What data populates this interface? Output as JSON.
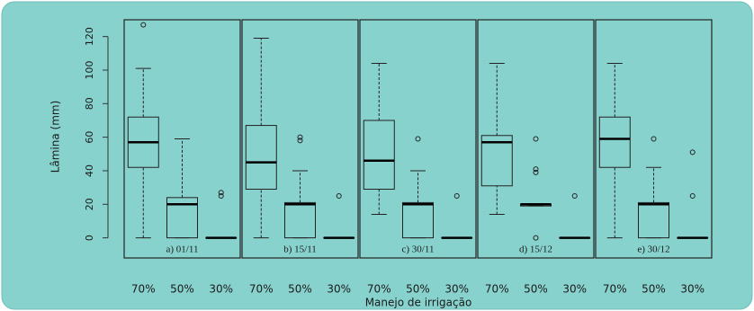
{
  "chart_data": {
    "type": "box",
    "ylabel": "Lâmina (mm)",
    "xlabel": "Manejo de irrigação",
    "categories": [
      "70%",
      "50%",
      "30%"
    ],
    "ylim": [
      -12,
      130
    ],
    "yticks": [
      0,
      20,
      40,
      60,
      80,
      100,
      120
    ],
    "panels": [
      {
        "label": "a) 01/11",
        "boxes": [
          {
            "min": 0,
            "q1": 42,
            "median": 57,
            "q3": 72,
            "max": 101,
            "outliers": [
              127
            ]
          },
          {
            "min": 0,
            "q1": 0,
            "median": 20,
            "q3": 24,
            "max": 59,
            "outliers": []
          },
          {
            "min": 0,
            "q1": 0,
            "median": 0,
            "q3": 0,
            "max": 0,
            "outliers": [
              25,
              27
            ]
          }
        ]
      },
      {
        "label": "b) 15/11",
        "boxes": [
          {
            "min": 0,
            "q1": 29,
            "median": 45,
            "q3": 67,
            "max": 119,
            "outliers": []
          },
          {
            "min": 0,
            "q1": 0,
            "median": 20,
            "q3": 21,
            "max": 40,
            "outliers": [
              58,
              60
            ]
          },
          {
            "min": 0,
            "q1": 0,
            "median": 0,
            "q3": 0,
            "max": 0,
            "outliers": [
              25
            ]
          }
        ]
      },
      {
        "label": "c) 30/11",
        "boxes": [
          {
            "min": 14,
            "q1": 29,
            "median": 46,
            "q3": 70,
            "max": 104,
            "outliers": []
          },
          {
            "min": 0,
            "q1": 0,
            "median": 20,
            "q3": 21,
            "max": 40,
            "outliers": [
              59
            ]
          },
          {
            "min": 0,
            "q1": 0,
            "median": 0,
            "q3": 0,
            "max": 0,
            "outliers": [
              25
            ]
          }
        ]
      },
      {
        "label": "d) 15/12",
        "boxes": [
          {
            "min": 14,
            "q1": 31,
            "median": 57,
            "q3": 61,
            "max": 104,
            "outliers": []
          },
          {
            "min": 19,
            "q1": 19,
            "median": 20,
            "q3": 20,
            "max": 20,
            "outliers": [
              0,
              39,
              41,
              59
            ]
          },
          {
            "min": 0,
            "q1": 0,
            "median": 0,
            "q3": 0,
            "max": 0,
            "outliers": [
              25
            ]
          }
        ]
      },
      {
        "label": "e) 30/12",
        "boxes": [
          {
            "min": 0,
            "q1": 42,
            "median": 59,
            "q3": 72,
            "max": 104,
            "outliers": []
          },
          {
            "min": 0,
            "q1": 0,
            "median": 20,
            "q3": 21,
            "max": 42,
            "outliers": [
              59
            ]
          },
          {
            "min": 0,
            "q1": 0,
            "median": 0,
            "q3": 0,
            "max": 0,
            "outliers": [
              25,
              51
            ]
          }
        ]
      }
    ]
  }
}
